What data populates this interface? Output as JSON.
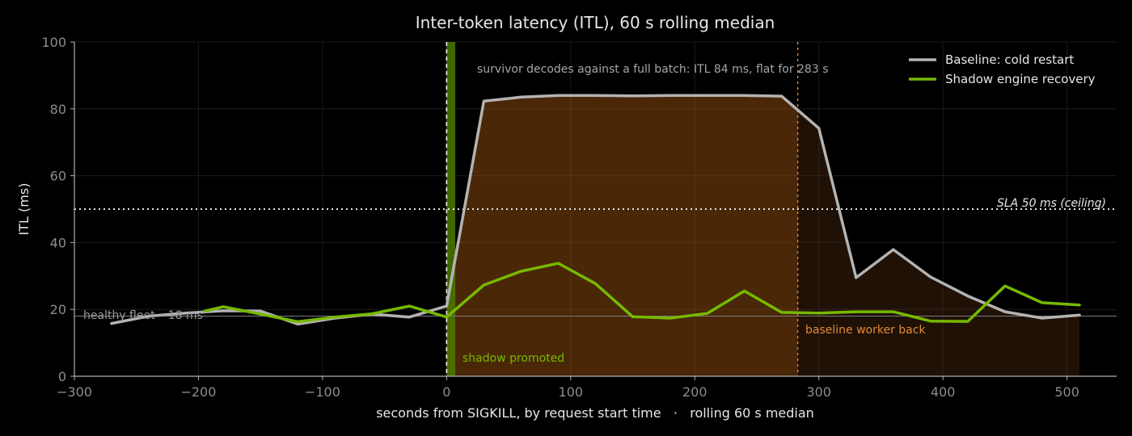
{
  "chart_data": {
    "type": "line",
    "title": "Inter-token latency (ITL), 60 s rolling median",
    "xlabel": "seconds from SIGKILL, by request start time   ·   rolling 60 s median",
    "ylabel": "ITL (ms)",
    "xlim": [
      -300,
      540
    ],
    "ylim": [
      0,
      100
    ],
    "x_ticks": [
      -300,
      -200,
      -100,
      0,
      100,
      200,
      300,
      400,
      500
    ],
    "x_tick_labels": [
      "−300",
      "−200",
      "−100",
      "0",
      "100",
      "200",
      "300",
      "400",
      "500"
    ],
    "y_ticks": [
      0,
      20,
      40,
      60,
      80,
      100
    ],
    "grid": true,
    "legend_position": "top-right",
    "series": [
      {
        "name": "Baseline: cold restart",
        "color": "#b3b3b3",
        "x": [
          -270,
          -240,
          -210,
          -180,
          -150,
          -120,
          -90,
          -60,
          -30,
          0,
          30,
          60,
          90,
          120,
          150,
          180,
          210,
          240,
          270,
          300,
          330,
          360,
          390,
          420,
          450,
          480,
          510
        ],
        "y": [
          15.8,
          18.0,
          18.9,
          19.6,
          19.5,
          15.6,
          17.4,
          18.6,
          17.7,
          21.0,
          82.3,
          83.5,
          84.0,
          84.0,
          83.9,
          84.0,
          84.0,
          84.0,
          83.8,
          74.2,
          29.5,
          37.9,
          29.7,
          24.0,
          19.3,
          17.4,
          18.3
        ]
      },
      {
        "name": "Shadow engine recovery",
        "color": "#76b900",
        "x": [
          -195,
          -180,
          -150,
          -120,
          -90,
          -60,
          -30,
          0,
          30,
          60,
          90,
          120,
          150,
          180,
          210,
          240,
          270,
          300,
          330,
          360,
          390,
          420,
          450,
          480,
          510
        ],
        "y": [
          19.5,
          20.8,
          18.6,
          16.3,
          17.7,
          18.7,
          21.0,
          17.7,
          27.3,
          31.4,
          33.8,
          27.7,
          17.8,
          17.4,
          18.8,
          25.5,
          19.1,
          18.9,
          19.3,
          19.3,
          16.5,
          16.4,
          27.0,
          22.0,
          21.3
        ]
      }
    ],
    "reference_lines": {
      "sla": {
        "y": 50,
        "label": "SLA 50 ms (ceiling)",
        "color": "#e6e6e6"
      },
      "healthy": {
        "y": 18,
        "label": "healthy fleet ~18 ms",
        "color": "#9a9a9a"
      }
    },
    "events": {
      "sigkill_x": 0,
      "shadow_promoted": {
        "x_start": 0,
        "x_end": 7,
        "label": "shadow promoted",
        "color": "#76b900"
      },
      "baseline_back": {
        "x": 283,
        "label": "baseline worker back",
        "color": "#e38a3c"
      },
      "outage_shade": {
        "x_start": 0,
        "x_end": 283,
        "color": "#b8600a"
      }
    },
    "annotations": {
      "plateau": {
        "text": "survivor decodes against a full batch: ITL 84 ms, flat for 283 s",
        "color": "#a6a6a6"
      }
    }
  }
}
